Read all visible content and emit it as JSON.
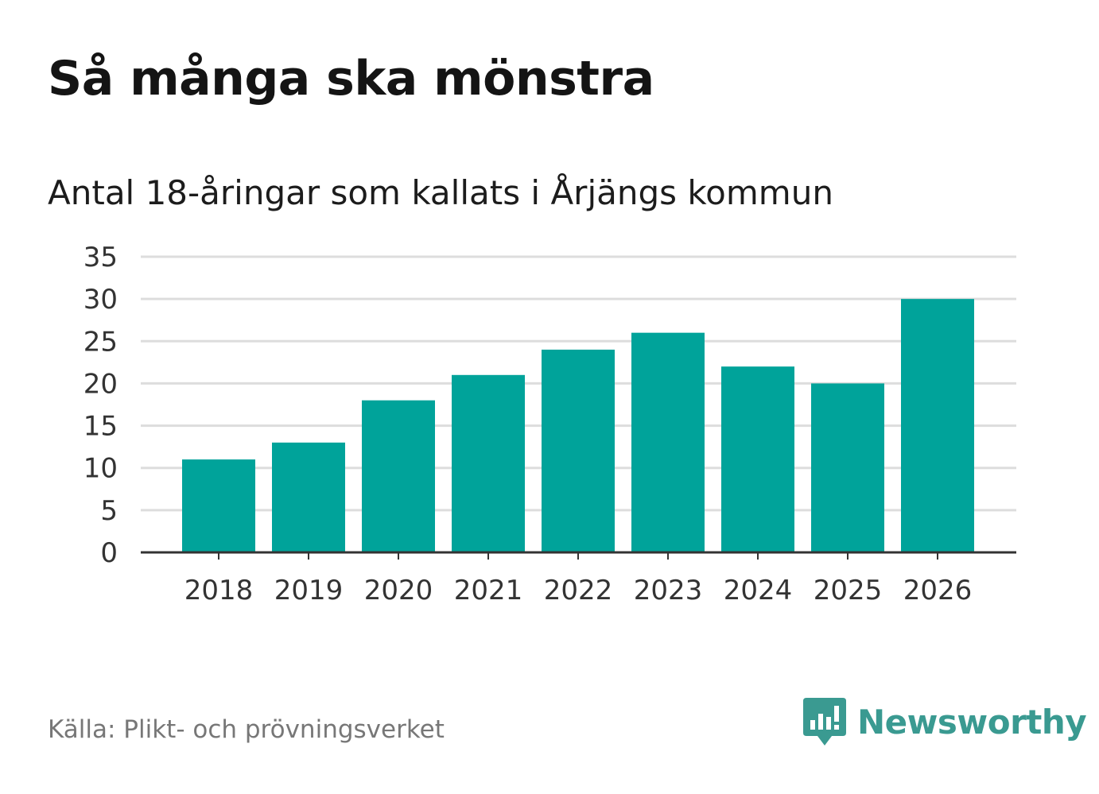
{
  "title": "Så många ska mönstra",
  "subtitle": "Antal 18-åringar som kallats i Årjängs kommun",
  "source": "Källa: Plikt- och prövningsverket",
  "brand": {
    "name": "Newsworthy",
    "icon": "newsworthy-logo-icon",
    "color": "#3a9a91"
  },
  "colors": {
    "bar": "#00a39a",
    "grid": "#dddddd",
    "axis": "#333333",
    "tick_text": "#333333"
  },
  "chart_data": {
    "type": "bar",
    "title": "Antal 18-åringar som kallats i Årjängs kommun",
    "xlabel": "",
    "ylabel": "",
    "categories": [
      "2018",
      "2019",
      "2020",
      "2021",
      "2022",
      "2023",
      "2024",
      "2025",
      "2026"
    ],
    "values": [
      11,
      13,
      18,
      21,
      24,
      26,
      22,
      20,
      30
    ],
    "ylim": [
      0,
      35
    ],
    "yticks": [
      0,
      5,
      10,
      15,
      20,
      25,
      30,
      35
    ],
    "grid": true,
    "legend": "none"
  }
}
